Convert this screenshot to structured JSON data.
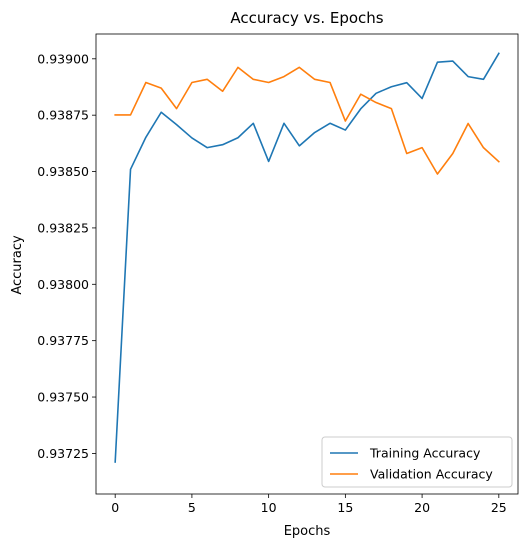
{
  "chart_data": {
    "type": "line",
    "title": "Accuracy vs. Epochs",
    "xlabel": "Epochs",
    "ylabel": "Accuracy",
    "x": [
      0,
      1,
      2,
      3,
      4,
      5,
      6,
      7,
      8,
      9,
      10,
      11,
      12,
      13,
      14,
      15,
      16,
      17,
      18,
      19,
      20,
      21,
      22,
      23,
      24,
      25
    ],
    "xlim": [
      -1.25,
      26.25
    ],
    "ylim": [
      0.93707,
      0.93911
    ],
    "xticks": [
      0,
      5,
      10,
      15,
      20,
      25
    ],
    "yticks": [
      0.93725,
      0.9375,
      0.93775,
      0.938,
      0.93825,
      0.9385,
      0.93875,
      0.939
    ],
    "ytick_labels": [
      "0.93725",
      "0.93750",
      "0.93775",
      "0.93800",
      "0.93825",
      "0.93850",
      "0.93875",
      "0.93900"
    ],
    "grid": false,
    "legend_position": "bottom-right",
    "series": [
      {
        "name": "Training Accuracy",
        "color": "#1f77b4",
        "values": [
          0.937212,
          0.93851,
          0.938652,
          0.938763,
          0.938708,
          0.938649,
          0.938606,
          0.938619,
          0.93865,
          0.938714,
          0.938545,
          0.938714,
          0.938614,
          0.938673,
          0.938714,
          0.938684,
          0.938778,
          0.938847,
          0.938876,
          0.938894,
          0.938824,
          0.938985,
          0.93899,
          0.938921,
          0.938909,
          0.939024
        ]
      },
      {
        "name": "Validation Accuracy",
        "color": "#ff7f0e",
        "values": [
          0.938751,
          0.938751,
          0.938895,
          0.93887,
          0.938779,
          0.938895,
          0.938909,
          0.938856,
          0.938962,
          0.938909,
          0.938895,
          0.938921,
          0.938962,
          0.938909,
          0.938895,
          0.938724,
          0.938843,
          0.938806,
          0.938779,
          0.93858,
          0.938606,
          0.938489,
          0.93858,
          0.938713,
          0.938606,
          0.938544
        ]
      }
    ]
  }
}
